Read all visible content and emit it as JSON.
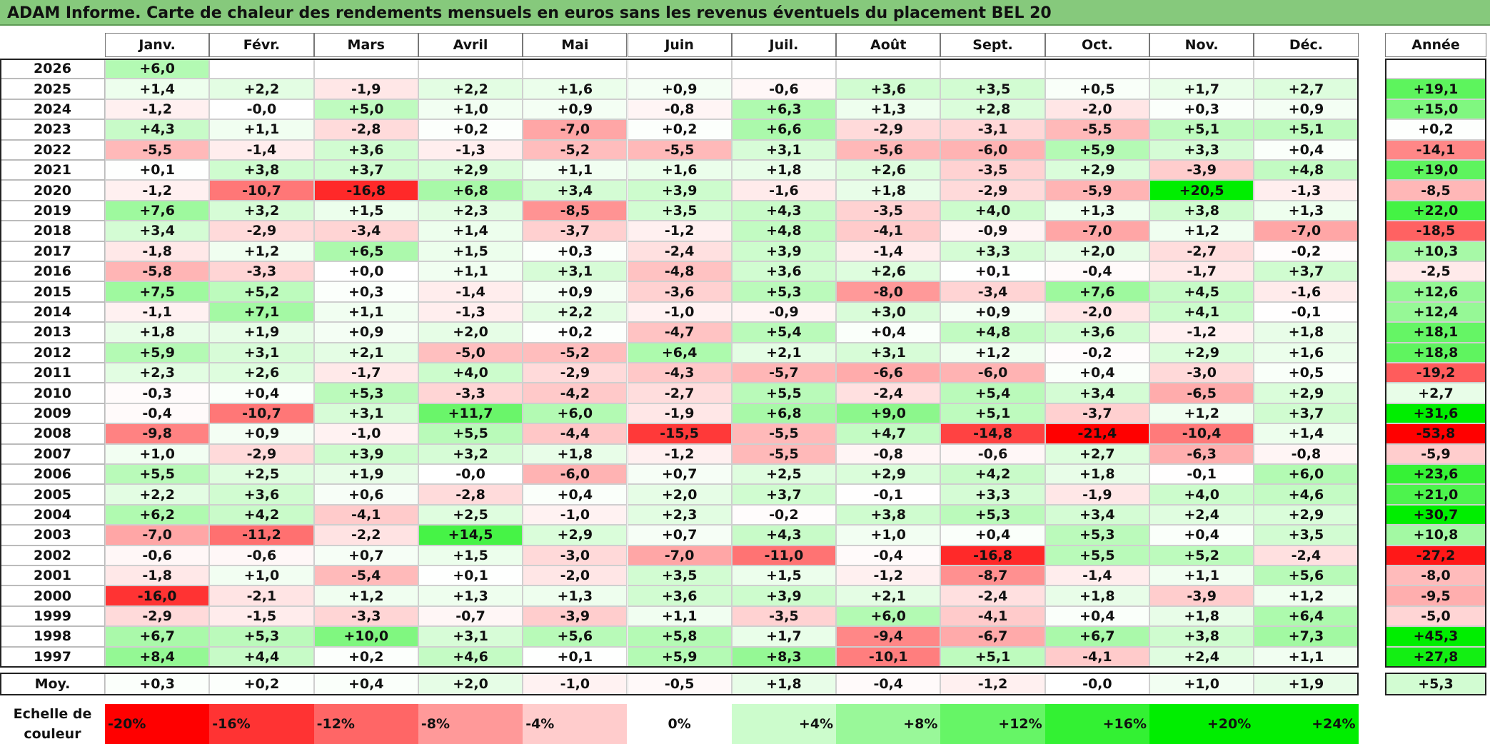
{
  "title": "ADAM Informe. Carte de chaleur des rendements mensuels en euros sans les revenus éventuels du placement BEL 20",
  "chart_data": {
    "type": "heatmap",
    "months": [
      "Janv.",
      "Févr.",
      "Mars",
      "Avril",
      "Mai",
      "Juin",
      "Juil.",
      "Août",
      "Sept.",
      "Oct.",
      "Nov.",
      "Déc."
    ],
    "year_column_label": "Année",
    "rows": [
      {
        "year": "2026",
        "values": [
          "+6,0",
          "",
          "",
          "",
          "",
          "",
          "",
          "",
          "",
          "",
          "",
          ""
        ],
        "annual": ""
      },
      {
        "year": "2025",
        "values": [
          "+1,4",
          "+2,2",
          "-1,9",
          "+2,2",
          "+1,6",
          "+0,9",
          "-0,6",
          "+3,6",
          "+3,5",
          "+0,5",
          "+1,7",
          "+2,7"
        ],
        "annual": "+19,1"
      },
      {
        "year": "2024",
        "values": [
          "-1,2",
          "-0,0",
          "+5,0",
          "+1,0",
          "+0,9",
          "-0,8",
          "+6,3",
          "+1,3",
          "+2,8",
          "-2,0",
          "+0,3",
          "+0,9"
        ],
        "annual": "+15,0"
      },
      {
        "year": "2023",
        "values": [
          "+4,3",
          "+1,1",
          "-2,8",
          "+0,2",
          "-7,0",
          "+0,2",
          "+6,6",
          "-2,9",
          "-3,1",
          "-5,5",
          "+5,1",
          "+5,1"
        ],
        "annual": "+0,2"
      },
      {
        "year": "2022",
        "values": [
          "-5,5",
          "-1,4",
          "+3,6",
          "-1,3",
          "-5,2",
          "-5,5",
          "+3,1",
          "-5,6",
          "-6,0",
          "+5,9",
          "+3,3",
          "+0,4"
        ],
        "annual": "-14,1"
      },
      {
        "year": "2021",
        "values": [
          "+0,1",
          "+3,8",
          "+3,7",
          "+2,9",
          "+1,1",
          "+1,6",
          "+1,8",
          "+2,6",
          "-3,5",
          "+2,9",
          "-3,9",
          "+4,8"
        ],
        "annual": "+19,0"
      },
      {
        "year": "2020",
        "values": [
          "-1,2",
          "-10,7",
          "-16,8",
          "+6,8",
          "+3,4",
          "+3,9",
          "-1,6",
          "+1,8",
          "-2,9",
          "-5,9",
          "+20,5",
          "-1,3"
        ],
        "annual": "-8,5"
      },
      {
        "year": "2019",
        "values": [
          "+7,6",
          "+3,2",
          "+1,5",
          "+2,3",
          "-8,5",
          "+3,5",
          "+4,3",
          "-3,5",
          "+4,0",
          "+1,3",
          "+3,8",
          "+1,3"
        ],
        "annual": "+22,0"
      },
      {
        "year": "2018",
        "values": [
          "+3,4",
          "-2,9",
          "-3,4",
          "+1,4",
          "-3,7",
          "-1,2",
          "+4,8",
          "-4,1",
          "-0,9",
          "-7,0",
          "+1,2",
          "-7,0"
        ],
        "annual": "-18,5"
      },
      {
        "year": "2017",
        "values": [
          "-1,8",
          "+1,2",
          "+6,5",
          "+1,5",
          "+0,3",
          "-2,4",
          "+3,9",
          "-1,4",
          "+3,3",
          "+2,0",
          "-2,7",
          "-0,2"
        ],
        "annual": "+10,3"
      },
      {
        "year": "2016",
        "values": [
          "-5,8",
          "-3,3",
          "+0,0",
          "+1,1",
          "+3,1",
          "-4,8",
          "+3,6",
          "+2,6",
          "+0,1",
          "-0,4",
          "-1,7",
          "+3,7"
        ],
        "annual": "-2,5"
      },
      {
        "year": "2015",
        "values": [
          "+7,5",
          "+5,2",
          "+0,3",
          "-1,4",
          "+0,9",
          "-3,6",
          "+5,3",
          "-8,0",
          "-3,4",
          "+7,6",
          "+4,5",
          "-1,6"
        ],
        "annual": "+12,6"
      },
      {
        "year": "2014",
        "values": [
          "-1,1",
          "+7,1",
          "+1,1",
          "-1,3",
          "+2,2",
          "-1,0",
          "-0,9",
          "+3,0",
          "+0,9",
          "-2,0",
          "+4,1",
          "-0,1"
        ],
        "annual": "+12,4"
      },
      {
        "year": "2013",
        "values": [
          "+1,8",
          "+1,9",
          "+0,9",
          "+2,0",
          "+0,2",
          "-4,7",
          "+5,4",
          "+0,4",
          "+4,8",
          "+3,6",
          "-1,2",
          "+1,8"
        ],
        "annual": "+18,1"
      },
      {
        "year": "2012",
        "values": [
          "+5,9",
          "+3,1",
          "+2,1",
          "-5,0",
          "-5,2",
          "+6,4",
          "+2,1",
          "+3,1",
          "+1,2",
          "-0,2",
          "+2,9",
          "+1,6"
        ],
        "annual": "+18,8"
      },
      {
        "year": "2011",
        "values": [
          "+2,3",
          "+2,6",
          "-1,7",
          "+4,0",
          "-2,9",
          "-4,3",
          "-5,7",
          "-6,6",
          "-6,0",
          "+0,4",
          "-3,0",
          "+0,5"
        ],
        "annual": "-19,2"
      },
      {
        "year": "2010",
        "values": [
          "-0,3",
          "+0,4",
          "+5,3",
          "-3,3",
          "-4,2",
          "-2,7",
          "+5,5",
          "-2,4",
          "+5,4",
          "+3,4",
          "-6,5",
          "+2,9"
        ],
        "annual": "+2,7"
      },
      {
        "year": "2009",
        "values": [
          "-0,4",
          "-10,7",
          "+3,1",
          "+11,7",
          "+6,0",
          "-1,9",
          "+6,8",
          "+9,0",
          "+5,1",
          "-3,7",
          "+1,2",
          "+3,7"
        ],
        "annual": "+31,6"
      },
      {
        "year": "2008",
        "values": [
          "-9,8",
          "+0,9",
          "-1,0",
          "+5,5",
          "-4,4",
          "-15,5",
          "-5,5",
          "+4,7",
          "-14,8",
          "-21,4",
          "-10,4",
          "+1,4"
        ],
        "annual": "-53,8"
      },
      {
        "year": "2007",
        "values": [
          "+1,0",
          "-2,9",
          "+3,9",
          "+3,2",
          "+1,8",
          "-1,2",
          "-5,5",
          "-0,8",
          "-0,6",
          "+2,7",
          "-6,3",
          "-0,8"
        ],
        "annual": "-5,9"
      },
      {
        "year": "2006",
        "values": [
          "+5,5",
          "+2,5",
          "+1,9",
          "-0,0",
          "-6,0",
          "+0,7",
          "+2,5",
          "+2,9",
          "+4,2",
          "+1,8",
          "-0,1",
          "+6,0"
        ],
        "annual": "+23,6"
      },
      {
        "year": "2005",
        "values": [
          "+2,2",
          "+3,6",
          "+0,6",
          "-2,8",
          "+0,4",
          "+2,0",
          "+3,7",
          "-0,1",
          "+3,3",
          "-1,9",
          "+4,0",
          "+4,6"
        ],
        "annual": "+21,0"
      },
      {
        "year": "2004",
        "values": [
          "+6,2",
          "+4,2",
          "-4,1",
          "+2,5",
          "-1,0",
          "+2,3",
          "-0,2",
          "+3,8",
          "+5,3",
          "+3,4",
          "+2,4",
          "+2,9"
        ],
        "annual": "+30,7"
      },
      {
        "year": "2003",
        "values": [
          "-7,0",
          "-11,2",
          "-2,2",
          "+14,5",
          "+2,9",
          "+0,7",
          "+4,3",
          "+1,0",
          "+0,4",
          "+5,3",
          "+0,4",
          "+3,5"
        ],
        "annual": "+10,8"
      },
      {
        "year": "2002",
        "values": [
          "-0,6",
          "-0,6",
          "+0,7",
          "+1,5",
          "-3,0",
          "-7,0",
          "-11,0",
          "-0,4",
          "-16,8",
          "+5,5",
          "+5,2",
          "-2,4"
        ],
        "annual": "-27,2"
      },
      {
        "year": "2001",
        "values": [
          "-1,8",
          "+1,0",
          "-5,4",
          "+0,1",
          "-2,0",
          "+3,5",
          "+1,5",
          "-1,2",
          "-8,7",
          "-1,4",
          "+1,1",
          "+5,6"
        ],
        "annual": "-8,0"
      },
      {
        "year": "2000",
        "values": [
          "-16,0",
          "-2,1",
          "+1,2",
          "+1,3",
          "+1,3",
          "+3,6",
          "+3,9",
          "+2,1",
          "-2,4",
          "+1,8",
          "-3,9",
          "+1,2"
        ],
        "annual": "-9,5"
      },
      {
        "year": "1999",
        "values": [
          "-2,9",
          "-1,5",
          "-3,3",
          "-0,7",
          "-3,9",
          "+1,1",
          "-3,5",
          "+6,0",
          "-4,1",
          "+0,4",
          "+1,8",
          "+6,4"
        ],
        "annual": "-5,0"
      },
      {
        "year": "1998",
        "values": [
          "+6,7",
          "+5,3",
          "+10,0",
          "+3,1",
          "+5,6",
          "+5,8",
          "+1,7",
          "-9,4",
          "-6,7",
          "+6,7",
          "+3,8",
          "+7,3"
        ],
        "annual": "+45,3"
      },
      {
        "year": "1997",
        "values": [
          "+8,4",
          "+4,4",
          "+0,2",
          "+4,6",
          "+0,1",
          "+5,9",
          "+8,3",
          "-10,1",
          "+5,1",
          "-4,1",
          "+2,4",
          "+1,1"
        ],
        "annual": "+27,8"
      }
    ],
    "average": {
      "label": "Moy.",
      "values": [
        "+0,3",
        "+0,2",
        "+0,4",
        "+2,0",
        "-1,0",
        "-0,5",
        "+1,8",
        "-0,4",
        "-1,2",
        "-0,0",
        "+1,0",
        "+1,9"
      ],
      "annual": "+5,3"
    },
    "scale": {
      "label": "Echelle de couleur",
      "stops": [
        "-20%",
        "-16%",
        "-12%",
        "-8%",
        "-4%",
        "0%",
        "+4%",
        "+8%",
        "+12%",
        "+16%",
        "+20%",
        "+24%"
      ]
    },
    "colors": {
      "negative_max": "#ff0000",
      "zero": "#ffffff",
      "positive_max": "#00ee00",
      "title_bar": "#86c97c"
    }
  }
}
